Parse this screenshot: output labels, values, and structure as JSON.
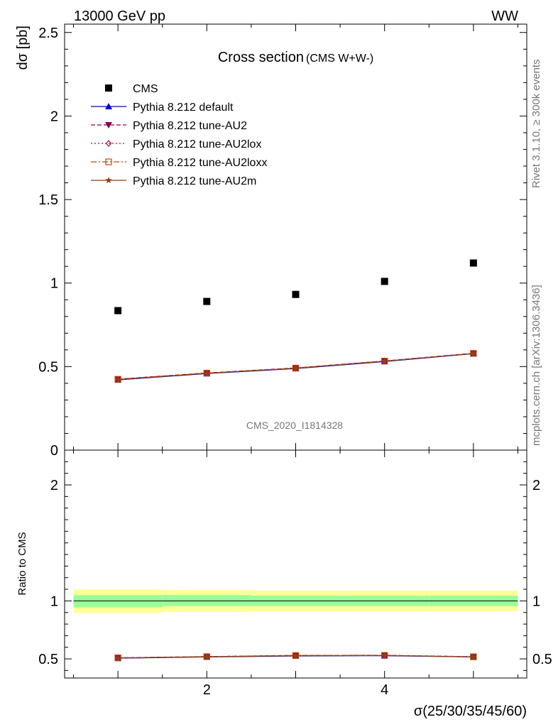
{
  "header": {
    "left": "13000 GeV pp",
    "right": "WW"
  },
  "side_labels": {
    "rivet": "Rivet 3.1.10, ≥ 300k events",
    "mcplots": "mcplots.cern.ch [arXiv:1306.3436]"
  },
  "chart_data": [
    {
      "type": "scatter",
      "title": "Cross section",
      "subtitle": "(CMS W+W-)",
      "ylabel": "dσ [pb]",
      "xlabel": "σ(25/30/35/45/60)",
      "watermark": "CMS_2020_I1814328",
      "xlim": [
        0.4,
        5.6
      ],
      "ylim": [
        0,
        2.55
      ],
      "yticks": [
        0,
        0.5,
        1,
        1.5,
        2,
        2.5
      ],
      "ytick_labels": [
        "0",
        "0.5",
        "1",
        "1.5",
        "2",
        "2.5"
      ],
      "legend_position": "top-left",
      "data": {
        "name": "CMS",
        "x": [
          1,
          2,
          3,
          4,
          5
        ],
        "y": [
          0.835,
          0.89,
          0.932,
          1.01,
          1.12
        ],
        "color": "#000000",
        "marker": "square"
      },
      "series": [
        {
          "name": "Pythia 8.212 default",
          "x": [
            1,
            2,
            3,
            4,
            5
          ],
          "y": [
            0.42,
            0.458,
            0.488,
            0.53,
            0.577
          ],
          "color": "#0000cc",
          "dash": "solid",
          "marker": "triangle-up"
        },
        {
          "name": "Pythia 8.212 tune-AU2",
          "x": [
            1,
            2,
            3,
            4,
            5
          ],
          "y": [
            0.425,
            0.462,
            0.492,
            0.534,
            0.58
          ],
          "color": "#8b0050",
          "dash": "dashed",
          "marker": "triangle-down"
        },
        {
          "name": "Pythia 8.212 tune-AU2lox",
          "x": [
            1,
            2,
            3,
            4,
            5
          ],
          "y": [
            0.424,
            0.461,
            0.491,
            0.533,
            0.579
          ],
          "color": "#b0003c",
          "dash": "dotted",
          "marker": "diamond-open"
        },
        {
          "name": "Pythia 8.212 tune-AU2loxx",
          "x": [
            1,
            2,
            3,
            4,
            5
          ],
          "y": [
            0.424,
            0.461,
            0.491,
            0.533,
            0.579
          ],
          "color": "#cc4400",
          "dash": "dashdot",
          "marker": "square-open"
        },
        {
          "name": "Pythia 8.212 tune-AU2m",
          "x": [
            1,
            2,
            3,
            4,
            5
          ],
          "y": [
            0.422,
            0.46,
            0.49,
            0.532,
            0.578
          ],
          "color": "#8b4513",
          "dash": "solid",
          "marker": "star"
        }
      ]
    },
    {
      "type": "line",
      "ylabel": "Ratio to CMS",
      "xlabel": "σ(25/30/35/45/60)",
      "xlim": [
        0.4,
        5.6
      ],
      "ylim": [
        0.335,
        2.3
      ],
      "yticks": [
        0.5,
        1,
        2
      ],
      "ytick_labels": [
        "0.5",
        "1",
        "2"
      ],
      "xticks": [
        2,
        4
      ],
      "xtick_labels": [
        "2",
        "4"
      ],
      "bands": {
        "x_edges": [
          0.5,
          1.5,
          2.5,
          3.5,
          4.5,
          5.5
        ],
        "yellow": [
          [
            0.895,
            1.1
          ],
          [
            0.905,
            1.095
          ],
          [
            0.91,
            1.09
          ],
          [
            0.91,
            1.09
          ],
          [
            0.91,
            1.09
          ]
        ],
        "green": [
          [
            0.945,
            1.05
          ],
          [
            0.955,
            1.05
          ],
          [
            0.955,
            1.045
          ],
          [
            0.955,
            1.045
          ],
          [
            0.955,
            1.045
          ]
        ],
        "yellow_color": "#ffff99",
        "green_color": "#99ff99"
      },
      "series": [
        {
          "name": "Pythia 8.212 default",
          "x": [
            1,
            2,
            3,
            4,
            5
          ],
          "y": [
            0.505,
            0.516,
            0.525,
            0.527,
            0.516
          ],
          "color": "#0000cc",
          "dash": "solid",
          "marker": "triangle-up"
        },
        {
          "name": "Pythia 8.212 tune-AU2",
          "x": [
            1,
            2,
            3,
            4,
            5
          ],
          "y": [
            0.51,
            0.52,
            0.53,
            0.531,
            0.519
          ],
          "color": "#8b0050",
          "dash": "dashed",
          "marker": "triangle-down"
        },
        {
          "name": "Pythia 8.212 tune-AU2lox",
          "x": [
            1,
            2,
            3,
            4,
            5
          ],
          "y": [
            0.509,
            0.519,
            0.529,
            0.53,
            0.518
          ],
          "color": "#b0003c",
          "dash": "dotted",
          "marker": "diamond-open"
        },
        {
          "name": "Pythia 8.212 tune-AU2loxx",
          "x": [
            1,
            2,
            3,
            4,
            5
          ],
          "y": [
            0.509,
            0.519,
            0.529,
            0.53,
            0.518
          ],
          "color": "#cc4400",
          "dash": "dashdot",
          "marker": "square-open"
        },
        {
          "name": "Pythia 8.212 tune-AU2m",
          "x": [
            1,
            2,
            3,
            4,
            5
          ],
          "y": [
            0.507,
            0.518,
            0.527,
            0.529,
            0.517
          ],
          "color": "#8b4513",
          "dash": "solid",
          "marker": "star"
        }
      ]
    }
  ]
}
